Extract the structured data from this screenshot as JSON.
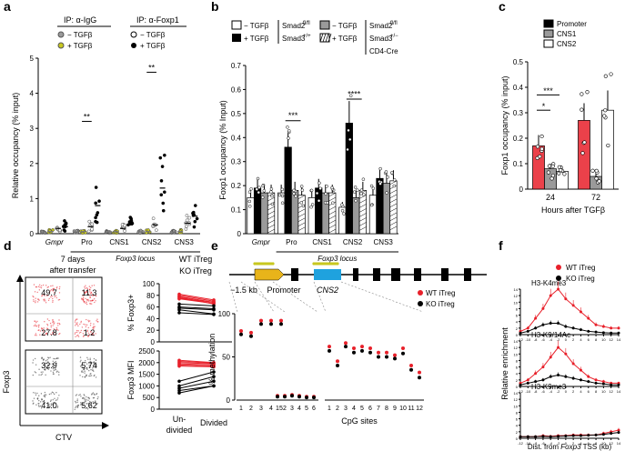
{
  "chart_data": [
    {
      "panel": "a",
      "type": "scatter",
      "ylabel": "Relative occupancy (% input)",
      "ylim": [
        0,
        5
      ],
      "yticks": [
        0,
        1,
        2,
        3,
        4,
        5
      ],
      "legend": [
        {
          "group": "IP: α-IgG",
          "items": [
            "− TGFβ",
            "+ TGFβ"
          ]
        },
        {
          "group": "IP: α-Foxp1",
          "items": [
            "− TGFβ",
            "+ TGFβ"
          ]
        }
      ],
      "categories": [
        "Gmpr",
        "Pro",
        "CNS1",
        "CNS2",
        "CNS3"
      ],
      "xgroup_label": "Foxp3 locus",
      "significance": [
        "**",
        "**"
      ],
      "series": [
        {
          "name": "IgG − TGFβ",
          "values": [
            0.05,
            0.05,
            0.05,
            0.05,
            0.05
          ]
        },
        {
          "name": "IgG + TGFβ",
          "values": [
            0.06,
            0.06,
            0.06,
            0.06,
            0.06
          ]
        },
        {
          "name": "Foxp1 − TGFβ",
          "values": [
            0.15,
            0.2,
            0.15,
            0.25,
            0.3
          ]
        },
        {
          "name": "Foxp1 + TGFβ",
          "values": [
            0.2,
            0.8,
            0.25,
            1.3,
            0.5
          ]
        }
      ]
    },
    {
      "panel": "b",
      "type": "bar",
      "ylabel": "Foxp1 occupancy (% Input)",
      "ylim": [
        0,
        0.7
      ],
      "yticks": [
        0,
        0.1,
        0.2,
        0.3,
        0.4,
        0.5,
        0.6,
        0.7
      ],
      "categories": [
        "Gmpr",
        "Pro",
        "CNS1",
        "CNS2",
        "CNS3"
      ],
      "xgroup_label": "Foxp3 locus",
      "legend": [
        "− TGFβ Smad2fl/fl Smad3+/+",
        "+ TGFβ Smad2fl/fl Smad3+/+",
        "− TGFβ Smad2fl/fl Smad3+/− CD4-Cre",
        "+ TGFβ Smad2fl/fl Smad3+/− CD4-Cre"
      ],
      "legend_text": {
        "minus": "− TGFβ",
        "plus": "+ TGFβ",
        "g1a": "Smad2",
        "g1a_sup": "fl/fl",
        "g1b": "Smad3",
        "g1b_sup": "+/+",
        "g2a": "Smad2",
        "g2a_sup": "fl/fl",
        "g2b": "Smad3",
        "g2b_sup": "+/−",
        "g2c": "CD4-Cre"
      },
      "significance": [
        "***",
        "****"
      ],
      "series": [
        {
          "name": "WT − TGFβ",
          "values": [
            0.15,
            0.17,
            0.15,
            0.11,
            0.16
          ]
        },
        {
          "name": "WT + TGFβ",
          "values": [
            0.19,
            0.36,
            0.19,
            0.46,
            0.23
          ]
        },
        {
          "name": "Mut − TGFβ",
          "values": [
            0.17,
            0.18,
            0.17,
            0.15,
            0.21
          ]
        },
        {
          "name": "Mut + TGFβ",
          "values": [
            0.17,
            0.16,
            0.17,
            0.18,
            0.22
          ]
        }
      ]
    },
    {
      "panel": "c",
      "type": "bar",
      "ylabel": "Foxp1 occupancy (% input)",
      "ylim": [
        0,
        0.5
      ],
      "yticks": [
        0,
        0.1,
        0.2,
        0.3,
        0.4,
        0.5
      ],
      "xlabel": "Hours after TGFβ",
      "categories": [
        "24",
        "72"
      ],
      "legend": [
        "Promoter",
        "CNS1",
        "CNS2"
      ],
      "significance": [
        "***",
        "*"
      ],
      "series": [
        {
          "name": "Promoter",
          "values": [
            0.17,
            0.27
          ]
        },
        {
          "name": "CNS1",
          "values": [
            0.08,
            0.05
          ]
        },
        {
          "name": "CNS2",
          "values": [
            0.07,
            0.31
          ]
        }
      ]
    },
    {
      "panel": "d",
      "type": "scatter",
      "title": "7 days after transfer",
      "flow_ylabel": "Foxp3",
      "flow_xlabel": "CTV",
      "wt_quadrants": [
        "49.7",
        "11.3",
        "27.8",
        "1.2"
      ],
      "ko_quadrants": [
        "32.9",
        "5.74",
        "41.0",
        "5.62"
      ],
      "legend": [
        "WT iTreg",
        "KO iTreg"
      ],
      "paired_top": {
        "ylabel": "% Foxp3+",
        "ylim": [
          0,
          100
        ],
        "yticks": [
          0,
          20,
          40,
          60,
          80,
          100
        ]
      },
      "paired_bottom": {
        "ylabel": "Foxp3 MFI",
        "ylim": [
          0,
          2500
        ],
        "yticks": [
          0,
          500,
          1000,
          1500,
          2000,
          2500
        ]
      },
      "xcategories": [
        "Un-\ndivided",
        "Divided"
      ],
      "wt_pct": [
        [
          82,
          72
        ],
        [
          80,
          70
        ],
        [
          78,
          68
        ],
        [
          77,
          65
        ],
        [
          75,
          68
        ],
        [
          74,
          66
        ]
      ],
      "ko_pct": [
        [
          65,
          62
        ],
        [
          60,
          57
        ],
        [
          58,
          55
        ],
        [
          55,
          48
        ],
        [
          50,
          47
        ]
      ],
      "wt_mfi": [
        [
          2100,
          2000
        ],
        [
          2050,
          1980
        ],
        [
          2000,
          1950
        ],
        [
          1950,
          1900
        ],
        [
          1900,
          1850
        ],
        [
          1850,
          1820
        ]
      ],
      "ko_mfi": [
        [
          1200,
          1600
        ],
        [
          1000,
          1400
        ],
        [
          900,
          1200
        ],
        [
          800,
          1000
        ],
        [
          700,
          1000
        ]
      ]
    },
    {
      "panel": "e",
      "type": "line",
      "ylabel": "% methylation",
      "ylim": [
        0,
        100
      ],
      "yticks": [
        0,
        50,
        100
      ],
      "xlabel": "CpG sites",
      "gene_labels": {
        "kb": "−1.5 kb",
        "promoter": "Promoter",
        "cns2": "CNS2"
      },
      "legend": [
        "WT iTreg",
        "KO iTreg"
      ],
      "groups": [
        {
          "sites": [
            1,
            2,
            3,
            4,
            5
          ],
          "wt": [
            80,
            78,
            92,
            92,
            92
          ],
          "ko": [
            76,
            74,
            88,
            88,
            88
          ]
        },
        {
          "sites": [
            1,
            2,
            3,
            4,
            5,
            6
          ],
          "wt": [
            5,
            5,
            6,
            5,
            4,
            4
          ],
          "ko": [
            4,
            4,
            5,
            4,
            3,
            3
          ]
        },
        {
          "sites": [
            1,
            2,
            3,
            4,
            5,
            6,
            7,
            8,
            9,
            10,
            11,
            12
          ],
          "wt": [
            62,
            45,
            66,
            60,
            62,
            60,
            55,
            55,
            52,
            60,
            40,
            32
          ],
          "ko": [
            57,
            40,
            62,
            55,
            57,
            55,
            50,
            50,
            48,
            54,
            35,
            26
          ]
        }
      ]
    },
    {
      "panel": "f",
      "type": "line",
      "ylabel": "Relative enrichment",
      "xlabel": "Dist. from Foxp3 TSS (kb)",
      "xlabel_pre": "Dist. from ",
      "xlabel_gene": "Foxp3",
      "xlabel_post": " TSS (kb)",
      "x": [
        -12,
        -10,
        -8,
        -6,
        -4,
        -2,
        0,
        2,
        4,
        6,
        8,
        10,
        12,
        14
      ],
      "legend": [
        "WT iTreg",
        "KO iTreg"
      ],
      "subplots": [
        {
          "title": "H3-K4me3",
          "ylim": [
            0,
            14
          ],
          "yticks": [
            0,
            2,
            4,
            6,
            8,
            10,
            12,
            14
          ],
          "wt": [
            1,
            2,
            5,
            8,
            12,
            14,
            11,
            9,
            7,
            5,
            3,
            2.5,
            2,
            2
          ],
          "ko": [
            0.5,
            1,
            2,
            3,
            3.5,
            3.5,
            2.5,
            2,
            1.5,
            1,
            0.8,
            0.6,
            0.5,
            0.5
          ]
        },
        {
          "title": "H3-K9/14Ac",
          "ylim": [
            0,
            14
          ],
          "yticks": [
            0,
            2,
            4,
            6,
            8,
            10,
            12,
            14
          ],
          "wt": [
            1,
            2,
            4,
            6,
            9,
            12,
            10,
            7,
            5,
            3,
            2,
            1.5,
            1,
            1
          ],
          "ko": [
            0.5,
            1,
            1.5,
            2,
            3,
            3.5,
            3,
            2.5,
            2,
            1.5,
            1,
            0.8,
            0.5,
            0.5
          ]
        },
        {
          "title": "H3-K9me3",
          "ylim": [
            0,
            14
          ],
          "yticks": [
            0,
            2,
            4,
            6,
            8,
            10,
            12,
            14
          ],
          "wt": [
            0.5,
            0.5,
            0.5,
            0.8,
            0.6,
            0.8,
            0.8,
            1,
            1,
            1,
            1,
            1.5,
            2,
            2.5
          ],
          "ko": [
            0.5,
            0.5,
            0.5,
            0.6,
            0.5,
            0.6,
            0.7,
            0.8,
            0.8,
            0.9,
            1,
            1.2,
            1.5,
            1.8
          ]
        }
      ]
    }
  ],
  "panel_letters": [
    "a",
    "b",
    "c",
    "d",
    "e",
    "f"
  ],
  "colors": {
    "red": "#e8202a",
    "black": "#111111",
    "grey": "#9a9a9a",
    "yellow": "#c8c820",
    "blue": "#1fa2de",
    "gold": "#e8b41a"
  }
}
